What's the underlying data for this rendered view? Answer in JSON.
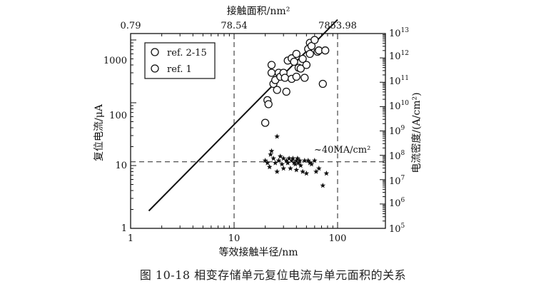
{
  "chart_data": {
    "type": "scatter",
    "x_axis": {
      "label": "等效接触半径/nm",
      "scale": "log",
      "range": [
        1,
        100
      ],
      "ticks": [
        "1",
        "10",
        "100"
      ]
    },
    "y_axis": {
      "label": "复位电流/μA",
      "scale": "log",
      "range": [
        1,
        2000
      ],
      "ticks": [
        "1",
        "10",
        "100",
        "1000"
      ]
    },
    "top_axis": {
      "label": "接触面积/nm²",
      "ticks": [
        "0.79",
        "78.54",
        "7853.98"
      ]
    },
    "right_axis": {
      "label": "电流密度/(A/cm²)",
      "ticks": [
        {
          "base": "10",
          "exp": "5"
        },
        {
          "base": "10",
          "exp": "6"
        },
        {
          "base": "10",
          "exp": "7"
        },
        {
          "base": "10",
          "exp": "8"
        },
        {
          "base": "10",
          "exp": "9"
        },
        {
          "base": "10",
          "exp": "10"
        },
        {
          "base": "10",
          "exp": "11"
        },
        {
          "base": "10",
          "exp": "12"
        },
        {
          "base": "10",
          "exp": "13"
        }
      ]
    },
    "legend": {
      "position": "top-left",
      "entries": [
        "ref. 2-15",
        "ref. 1"
      ]
    },
    "annotation": {
      "text": "~40MA/cm²"
    },
    "reference_lines": {
      "horizontal_y": 11.5,
      "vertical_x": [
        10,
        100
      ]
    },
    "fit_line": {
      "x": [
        1.5,
        100
      ],
      "y": [
        1.9,
        2100
      ]
    },
    "series": [
      {
        "name": "ref. 2-15",
        "marker": "circle",
        "points": [
          [
            20,
            48
          ],
          [
            21,
            110
          ],
          [
            21.5,
            95
          ],
          [
            23,
            300
          ],
          [
            23,
            400
          ],
          [
            24,
            200
          ],
          [
            25,
            230
          ],
          [
            26,
            160
          ],
          [
            27,
            300
          ],
          [
            28,
            260
          ],
          [
            30,
            300
          ],
          [
            31,
            250
          ],
          [
            32,
            150
          ],
          [
            33,
            470
          ],
          [
            36,
            510
          ],
          [
            36,
            240
          ],
          [
            38,
            450
          ],
          [
            40,
            600
          ],
          [
            40,
            260
          ],
          [
            42,
            360
          ],
          [
            44,
            350
          ],
          [
            46,
            500
          ],
          [
            48,
            250
          ],
          [
            50,
            400
          ],
          [
            52,
            720
          ],
          [
            54,
            900
          ],
          [
            54,
            600
          ],
          [
            56,
            800
          ],
          [
            60,
            1000
          ],
          [
            64,
            650
          ],
          [
            66,
            680
          ],
          [
            72,
            200
          ],
          [
            76,
            680
          ]
        ]
      },
      {
        "name": "ref. 1",
        "marker": "star",
        "points": [
          [
            20,
            12
          ],
          [
            21,
            11
          ],
          [
            22,
            9.5
          ],
          [
            22.5,
            15
          ],
          [
            23,
            17
          ],
          [
            24,
            13
          ],
          [
            25,
            11
          ],
          [
            26,
            29
          ],
          [
            26,
            8
          ],
          [
            27,
            12
          ],
          [
            28,
            14
          ],
          [
            29,
            10.5
          ],
          [
            30,
            13
          ],
          [
            30,
            9
          ],
          [
            32,
            12
          ],
          [
            33,
            11
          ],
          [
            34,
            13
          ],
          [
            35,
            9
          ],
          [
            36,
            12
          ],
          [
            37,
            13
          ],
          [
            38,
            11
          ],
          [
            39,
            10.5
          ],
          [
            40,
            12
          ],
          [
            40,
            8.5
          ],
          [
            41,
            13
          ],
          [
            42,
            11
          ],
          [
            43,
            12
          ],
          [
            44,
            10
          ],
          [
            46,
            8
          ],
          [
            48,
            12
          ],
          [
            50,
            7.5
          ],
          [
            52,
            12
          ],
          [
            54,
            11
          ],
          [
            56,
            10.5
          ],
          [
            60,
            12
          ],
          [
            62,
            8
          ],
          [
            66,
            9
          ],
          [
            72,
            4.8
          ],
          [
            78,
            7.5
          ]
        ]
      }
    ]
  },
  "caption": "图 10-18    相变存储单元复位电流与单元面积的关系"
}
